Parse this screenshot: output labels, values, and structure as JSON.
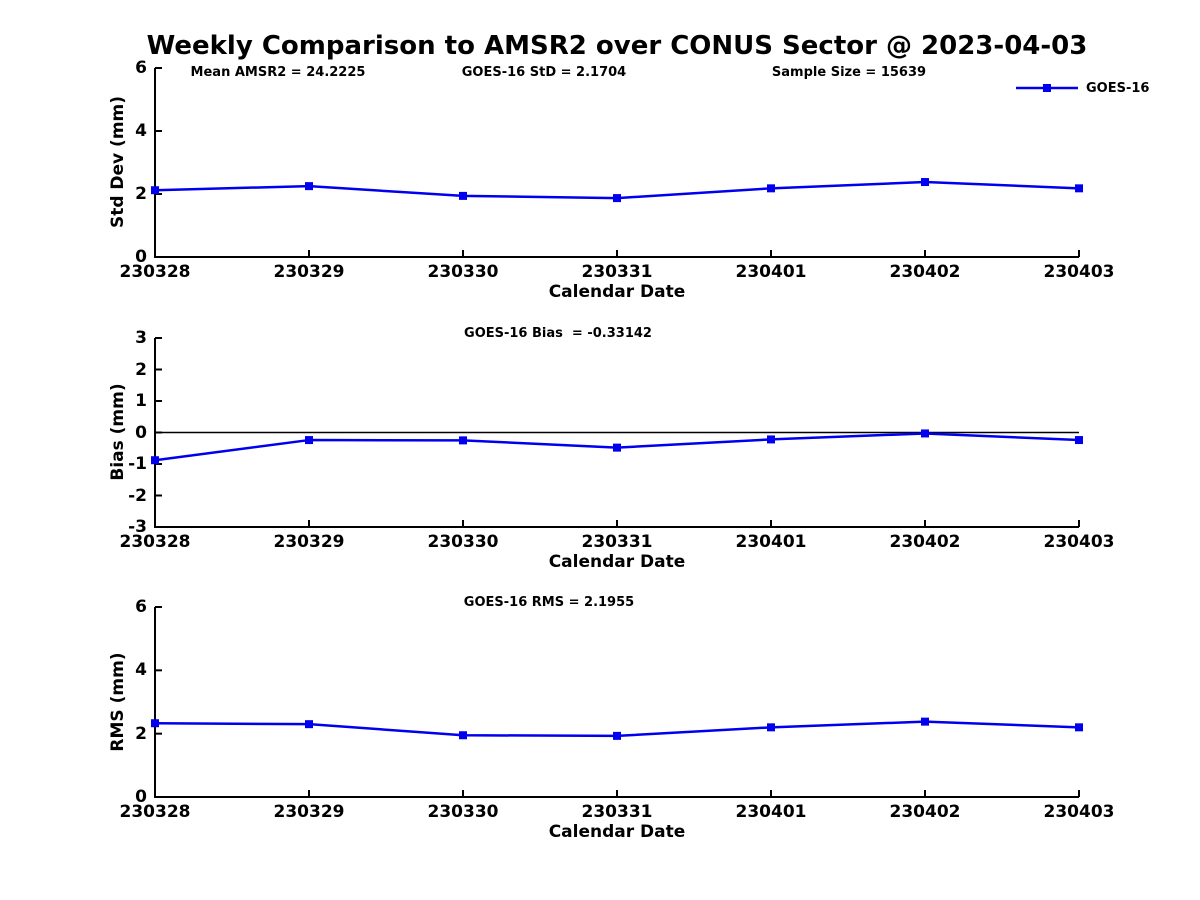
{
  "title": "Weekly Comparison to AMSR2 over CONUS Sector @ 2023-04-03",
  "annotations": {
    "mean_amsr2": "Mean AMSR2 = 24.2225",
    "goes_std": "GOES-16 StD = 2.1704",
    "sample_size": "Sample Size = 15639"
  },
  "legend": {
    "label": "GOES-16",
    "position": "top-right",
    "marker": "filled-square"
  },
  "colors": {
    "series": "#0000EE",
    "axis": "#000000",
    "background": "#FFFFFF"
  },
  "chart_data": [
    {
      "type": "line",
      "name": "std-dev-subplot",
      "title": "",
      "ylabel": "Std Dev (mm)",
      "xlabel": "Calendar Date",
      "ylim": [
        0,
        6
      ],
      "yticks": [
        0,
        2,
        4,
        6
      ],
      "grid": false,
      "zero_line": false,
      "categories": [
        "230328",
        "230329",
        "230330",
        "230331",
        "230401",
        "230402",
        "230403"
      ],
      "series": [
        {
          "name": "GOES-16",
          "values": [
            2.12,
            2.25,
            1.94,
            1.87,
            2.18,
            2.38,
            2.18
          ]
        }
      ]
    },
    {
      "type": "line",
      "name": "bias-subplot",
      "title": "GOES-16 Bias  = -0.33142",
      "ylabel": "Bias (mm)",
      "xlabel": "Calendar Date",
      "ylim": [
        -3,
        3
      ],
      "yticks": [
        -3,
        -2,
        -1,
        0,
        1,
        2,
        3
      ],
      "grid": false,
      "zero_line": true,
      "categories": [
        "230328",
        "230329",
        "230330",
        "230331",
        "230401",
        "230402",
        "230403"
      ],
      "series": [
        {
          "name": "GOES-16",
          "values": [
            -0.88,
            -0.24,
            -0.25,
            -0.48,
            -0.22,
            -0.03,
            -0.24
          ]
        }
      ]
    },
    {
      "type": "line",
      "name": "rms-subplot",
      "title": "GOES-16 RMS = 2.1955",
      "ylabel": "RMS (mm)",
      "xlabel": "Calendar Date",
      "ylim": [
        0,
        6
      ],
      "yticks": [
        0,
        2,
        4,
        6
      ],
      "grid": false,
      "zero_line": false,
      "categories": [
        "230328",
        "230329",
        "230330",
        "230331",
        "230401",
        "230402",
        "230403"
      ],
      "series": [
        {
          "name": "GOES-16",
          "values": [
            2.33,
            2.3,
            1.95,
            1.93,
            2.2,
            2.38,
            2.2
          ]
        }
      ]
    }
  ]
}
